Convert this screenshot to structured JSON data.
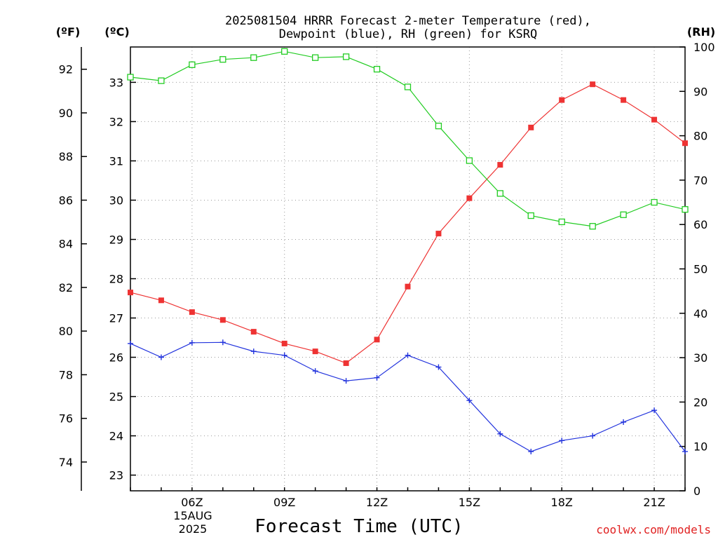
{
  "title_line1": "2025081504 HRRR Forecast 2-meter Temperature (red),",
  "title_line2": "Dewpoint (blue), RH (green) for KSRQ",
  "units": {
    "fahrenheit": "(ºF)",
    "celsius": "(ºC)",
    "rh": "(RH)"
  },
  "xlabel": "Forecast Time (UTC)",
  "credit": "coolwx.com/models",
  "date_label": {
    "day": "15AUG",
    "year": "2025"
  },
  "colors": {
    "temperature": "#ee3333",
    "dewpoint": "#2233dd",
    "rh": "#22cc22",
    "grid": "#999999",
    "credit": "#e02020"
  },
  "chart_data": {
    "type": "line",
    "x": [
      "04Z",
      "05Z",
      "06Z",
      "07Z",
      "08Z",
      "09Z",
      "10Z",
      "11Z",
      "12Z",
      "13Z",
      "14Z",
      "15Z",
      "16Z",
      "17Z",
      "18Z",
      "19Z",
      "20Z",
      "21Z",
      "22Z"
    ],
    "x_ticks": [
      "06Z",
      "09Z",
      "12Z",
      "15Z",
      "18Z",
      "21Z"
    ],
    "series": [
      {
        "name": "Temperature",
        "axis": "celsius",
        "marker": "filled-square",
        "values": [
          27.65,
          27.45,
          27.15,
          26.95,
          26.65,
          26.35,
          26.15,
          25.85,
          26.45,
          27.8,
          29.15,
          30.05,
          30.9,
          31.85,
          32.55,
          32.95,
          32.55,
          32.05,
          31.45
        ]
      },
      {
        "name": "Dewpoint",
        "axis": "celsius",
        "marker": "plus",
        "values": [
          26.35,
          26.0,
          26.37,
          26.38,
          26.15,
          26.05,
          25.65,
          25.4,
          25.48,
          26.05,
          25.75,
          24.9,
          24.05,
          23.6,
          23.88,
          24.0,
          24.35,
          24.65,
          23.6
        ]
      },
      {
        "name": "RH",
        "axis": "rh",
        "marker": "open-square",
        "values": [
          93.2,
          92.4,
          96.0,
          97.2,
          97.6,
          99.0,
          97.6,
          97.8,
          95.0,
          91.0,
          82.2,
          74.4,
          67.0,
          62.0,
          60.6,
          59.6,
          62.2,
          65.0,
          63.4
        ]
      }
    ],
    "y_celsius": {
      "ticks": [
        23,
        24,
        25,
        26,
        27,
        28,
        29,
        30,
        31,
        32,
        33
      ],
      "range": [
        22.6,
        33.9
      ]
    },
    "y_fahrenheit": {
      "ticks": [
        74,
        76,
        78,
        80,
        82,
        84,
        86,
        88,
        90,
        92
      ]
    },
    "y_rh": {
      "ticks": [
        0,
        10,
        20,
        30,
        40,
        50,
        60,
        70,
        80,
        90,
        100
      ],
      "range": [
        0,
        100
      ]
    },
    "grid": true
  }
}
